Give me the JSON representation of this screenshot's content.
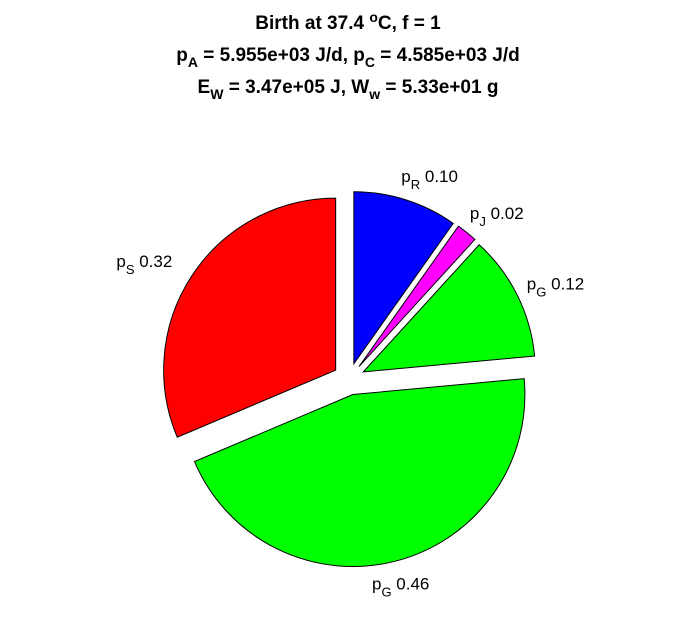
{
  "title": {
    "line1": {
      "text": "Birth at 37.4 ",
      "sup": "o",
      "tail": "C, f = 1"
    },
    "line2": {
      "a": "p",
      "a_sub": "A",
      "a_val": " = 5.955e+03 J/d, ",
      "b": "p",
      "b_sub": "C",
      "b_val": " = 4.585e+03 J/d"
    },
    "line3": {
      "a": "E",
      "a_sub": "W",
      "a_val": " = 3.47e+05 J, ",
      "b": "W",
      "b_sub": "w",
      "b_val": " = 5.33e+01 g"
    }
  },
  "chart_data": {
    "type": "pie",
    "exploded": true,
    "slices": [
      {
        "name": "p",
        "sub": "R",
        "label": "0.10",
        "value": 0.1,
        "color": "#0000ff"
      },
      {
        "name": "p",
        "sub": "J",
        "label": "0.02",
        "value": 0.02,
        "color": "#ff00ff"
      },
      {
        "name": "p",
        "sub": "G",
        "label": "0.12",
        "value": 0.12,
        "color": "#00ff00"
      },
      {
        "name": "p",
        "sub": "G",
        "label": "0.46",
        "value": 0.46,
        "color": "#00ff00"
      },
      {
        "name": "p",
        "sub": "S",
        "label": "0.32",
        "value": 0.32,
        "color": "#ff0000"
      }
    ]
  }
}
